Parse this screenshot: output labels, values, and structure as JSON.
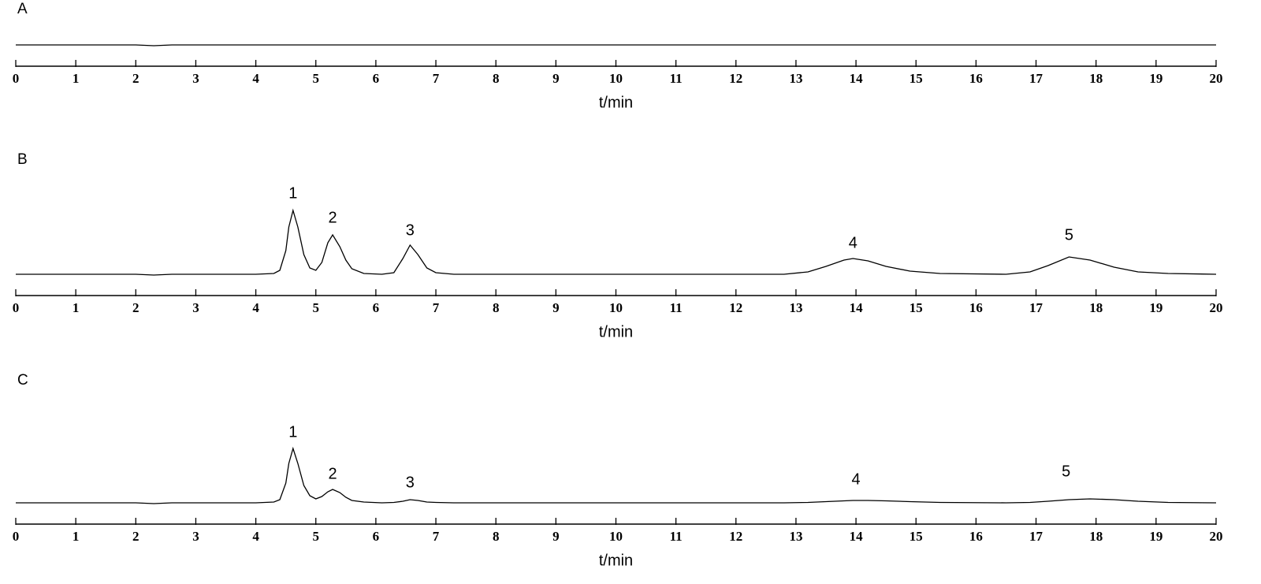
{
  "chart_data": [
    {
      "type": "line",
      "title": "A",
      "x_label": "t/min",
      "color": "#000000",
      "x": [
        0,
        2,
        2.3,
        2.6,
        20
      ],
      "values": [
        0,
        0,
        -1,
        0,
        0
      ],
      "xlim": [
        0,
        20
      ],
      "xticks": [
        0,
        1,
        2,
        3,
        4,
        5,
        6,
        7,
        8,
        9,
        10,
        11,
        12,
        13,
        14,
        15,
        16,
        17,
        18,
        19,
        20
      ],
      "ylim": [
        -27,
        110
      ]
    },
    {
      "type": "line",
      "title": "B",
      "x_label": "t/min",
      "color": "#000000",
      "x": [
        0,
        2,
        2.3,
        2.6,
        4,
        4.3,
        4.4,
        4.5,
        4.55,
        4.62,
        4.7,
        4.8,
        4.9,
        5.0,
        5.1,
        5.2,
        5.28,
        5.4,
        5.5,
        5.6,
        5.8,
        6.1,
        6.3,
        6.45,
        6.57,
        6.7,
        6.85,
        7.0,
        7.3,
        12.8,
        13.2,
        13.5,
        13.8,
        13.95,
        14.2,
        14.5,
        14.9,
        15.4,
        16.5,
        16.9,
        17.2,
        17.55,
        17.9,
        18.3,
        18.7,
        19.2,
        20
      ],
      "values": [
        0,
        0,
        -1,
        0,
        0,
        1,
        5,
        30,
        60,
        81,
        60,
        25,
        8,
        5,
        15,
        40,
        50,
        35,
        18,
        7,
        1,
        0,
        2,
        20,
        37,
        25,
        8,
        2,
        0,
        0,
        3,
        10,
        18,
        20,
        17,
        10,
        4,
        1,
        0,
        3,
        11,
        22,
        18,
        9,
        3,
        1,
        0
      ],
      "xlim": [
        0,
        20
      ],
      "xticks": [
        0,
        1,
        2,
        3,
        4,
        5,
        6,
        7,
        8,
        9,
        10,
        11,
        12,
        13,
        14,
        15,
        16,
        17,
        18,
        19,
        20
      ],
      "ylim": [
        -27,
        110
      ],
      "annotations": [
        {
          "text": "1",
          "x": 4.62,
          "y": 102
        },
        {
          "text": "2",
          "x": 5.28,
          "y": 71
        },
        {
          "text": "3",
          "x": 6.57,
          "y": 55
        },
        {
          "text": "4",
          "x": 13.95,
          "y": 39
        },
        {
          "text": "5",
          "x": 17.55,
          "y": 49
        }
      ]
    },
    {
      "type": "line",
      "title": "C",
      "x_label": "t/min",
      "color": "#000000",
      "x": [
        0,
        2,
        2.3,
        2.6,
        4,
        4.3,
        4.4,
        4.5,
        4.55,
        4.62,
        4.7,
        4.8,
        4.9,
        5.0,
        5.1,
        5.2,
        5.28,
        5.4,
        5.5,
        5.6,
        5.8,
        6.1,
        6.3,
        6.45,
        6.57,
        6.7,
        6.85,
        7.0,
        7.3,
        12.8,
        13.2,
        13.5,
        13.8,
        13.95,
        14.2,
        14.5,
        14.9,
        15.4,
        16.5,
        16.9,
        17.2,
        17.55,
        17.9,
        18.3,
        18.7,
        19.2,
        20
      ],
      "values": [
        0,
        0,
        -1,
        0,
        0,
        1,
        4,
        25,
        50,
        69,
        50,
        22,
        9,
        5,
        8,
        14,
        17,
        13,
        7,
        3,
        1,
        0,
        0.5,
        2,
        4,
        3,
        1,
        0.5,
        0,
        0,
        0.5,
        1.5,
        2.5,
        3,
        3,
        2.5,
        1.5,
        0.5,
        0,
        0.5,
        2,
        4,
        5,
        4,
        2,
        0.5,
        0
      ],
      "xlim": [
        0,
        20
      ],
      "xticks": [
        0,
        1,
        2,
        3,
        4,
        5,
        6,
        7,
        8,
        9,
        10,
        11,
        12,
        13,
        14,
        15,
        16,
        17,
        18,
        19,
        20
      ],
      "ylim": [
        -27,
        110
      ],
      "annotations": [
        {
          "text": "1",
          "x": 4.62,
          "y": 89
        },
        {
          "text": "2",
          "x": 5.28,
          "y": 36
        },
        {
          "text": "3",
          "x": 6.57,
          "y": 25
        },
        {
          "text": "4",
          "x": 14.0,
          "y": 29
        },
        {
          "text": "5",
          "x": 17.5,
          "y": 39
        }
      ]
    }
  ]
}
